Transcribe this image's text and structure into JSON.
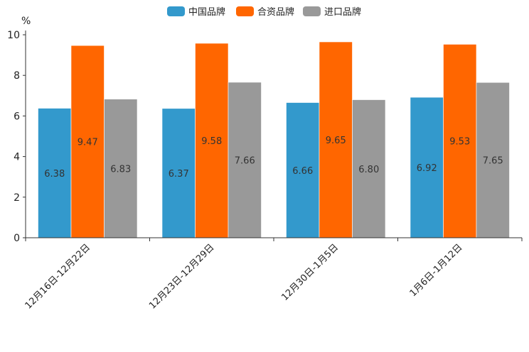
{
  "chart_data": {
    "type": "bar",
    "title": "",
    "xlabel": "",
    "ylabel": "%",
    "ylim": [
      0,
      10
    ],
    "yticks": [
      "0",
      "2",
      "4",
      "6",
      "8",
      "10"
    ],
    "legend_position": "top-center",
    "categories": [
      "12月16日-12月22日",
      "12月23日-12月29日",
      "12月30日-1月5日",
      "1月6日-1月12日"
    ],
    "series": [
      {
        "name": "中国品牌",
        "color": "#3399cc",
        "values": [
          6.38,
          6.37,
          6.66,
          6.92
        ],
        "labels": [
          "6.38",
          "6.37",
          "6.66",
          "6.92"
        ]
      },
      {
        "name": "合资品牌",
        "color": "#ff6600",
        "values": [
          9.47,
          9.58,
          9.65,
          9.53
        ],
        "labels": [
          "9.47",
          "9.58",
          "9.65",
          "9.53"
        ]
      },
      {
        "name": "进口品牌",
        "color": "#999999",
        "values": [
          6.83,
          7.66,
          6.8,
          7.65
        ],
        "labels": [
          "6.83",
          "7.66",
          "6.80",
          "7.65"
        ]
      }
    ]
  }
}
